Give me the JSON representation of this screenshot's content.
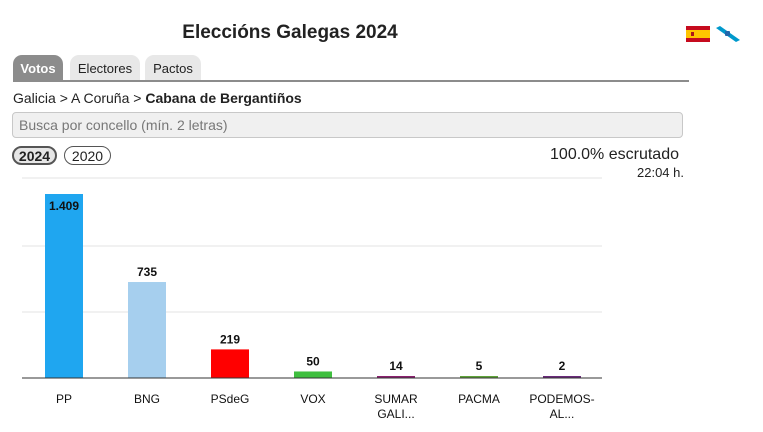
{
  "header": {
    "title": "Eleccións Galegas 2024"
  },
  "language_flags": [
    {
      "name": "spanish-flag-icon"
    },
    {
      "name": "galician-flag-icon"
    }
  ],
  "tabs": [
    {
      "label": "Votos",
      "active": true
    },
    {
      "label": "Electores",
      "active": false
    },
    {
      "label": "Pactos",
      "active": false
    }
  ],
  "breadcrumb": {
    "level1": "Galicia",
    "sep": ">",
    "level2": "A Coruña",
    "current": "Cabana de Bergantiños"
  },
  "search": {
    "placeholder": "Busca por concello (mín. 2 letras)",
    "value": ""
  },
  "years": [
    {
      "label": "2024",
      "selected": true
    },
    {
      "label": "2020",
      "selected": false
    }
  ],
  "status": {
    "scrutiny": "100.0% escrutado",
    "time": "22:04 h."
  },
  "chart_data": {
    "type": "bar",
    "categories": [
      "PP",
      "BNG",
      "PSdeG",
      "VOX",
      "SUMAR GALI...",
      "PACMA",
      "PODEMOS-AL..."
    ],
    "category_lines": [
      [
        "PP"
      ],
      [
        "BNG"
      ],
      [
        "PSdeG"
      ],
      [
        "VOX"
      ],
      [
        "SUMAR",
        "GALI..."
      ],
      [
        "PACMA"
      ],
      [
        "PODEMOS-",
        "AL..."
      ]
    ],
    "values": [
      1409,
      735,
      219,
      50,
      14,
      5,
      2
    ],
    "value_labels": [
      "1.409",
      "735",
      "219",
      "50",
      "14",
      "5",
      "2"
    ],
    "colors": [
      "#1fa6f0",
      "#a6cfee",
      "#ff0000",
      "#3fbf3f",
      "#8a1f6e",
      "#5fa33a",
      "#6a2a7a"
    ],
    "ylim": [
      0,
      1409
    ],
    "grid": true,
    "gridlines": [
      0,
      500,
      1000,
      1500
    ],
    "xlabel": "",
    "ylabel": ""
  }
}
